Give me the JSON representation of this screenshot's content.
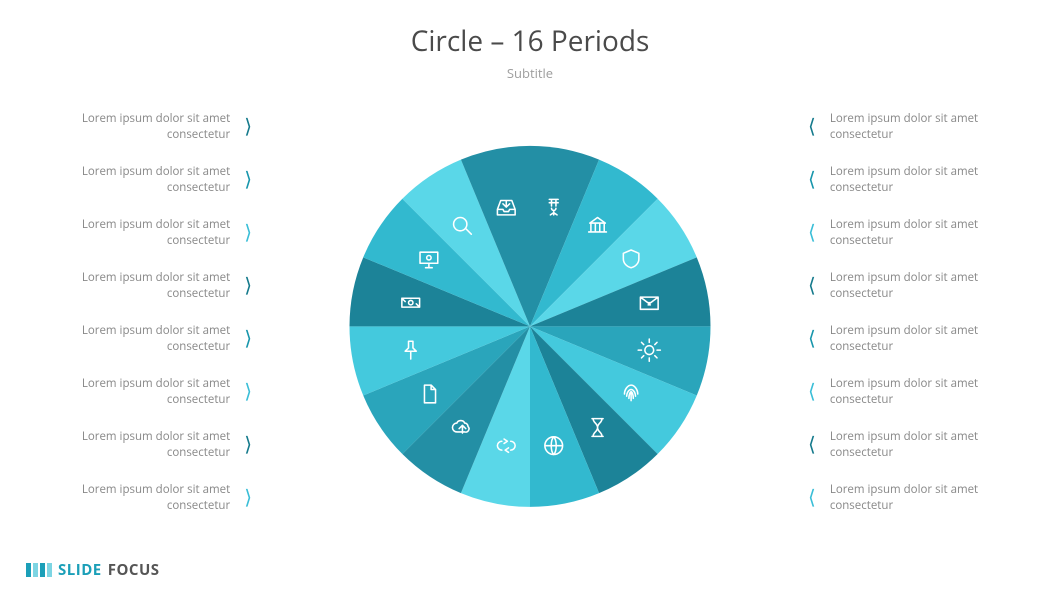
{
  "title": "Circle – 16 Periods",
  "subtitle": "Subtitle",
  "label_text": "Lorem ipsum dolor sit amet consectetur",
  "caret_colors": [
    "#157a8c",
    "#1896ac",
    "#3abed7",
    "#157a8c",
    "#1896ac",
    "#3abed7",
    "#157a8c",
    "#3abed7"
  ],
  "chart": {
    "type": "pie",
    "slice_count": 16,
    "radius": 190,
    "colors": [
      "#238fa5",
      "#32b9cf",
      "#5ad7e8",
      "#1c8398",
      "#2aa5bb",
      "#44c9dd",
      "#1c8398",
      "#32b9cf",
      "#5ad7e8",
      "#238fa5",
      "#2aa5bb",
      "#44c9dd",
      "#1c8398",
      "#32b9cf",
      "#5ad7e8",
      "#238fa5"
    ],
    "icons": [
      "money-magnet",
      "bank",
      "shield",
      "envelope",
      "sun",
      "fingerprint",
      "hourglass",
      "globe",
      "exchange",
      "cloud-upload",
      "document",
      "pin",
      "cash",
      "monitor-money",
      "magnifier",
      "inbox"
    ],
    "icon_radius": 128,
    "icon_size": 28
  },
  "brand": {
    "text1": "SLIDE",
    "text2": "FOCUS",
    "bar_colors": [
      "#1b9fb8",
      "#7dd5e3",
      "#1b9fb8",
      "#7dd5e3"
    ]
  }
}
